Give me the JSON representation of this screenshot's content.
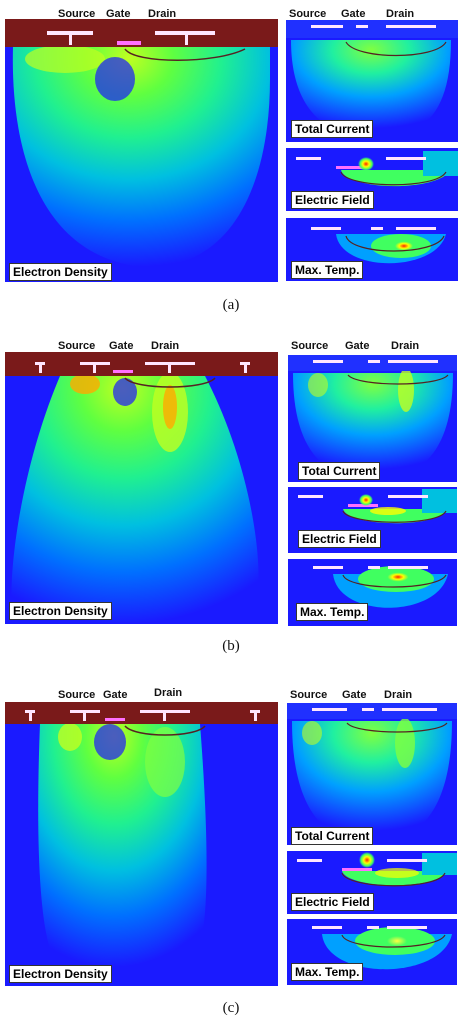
{
  "figure": {
    "header_labels": {
      "source": "Source",
      "gate": "Gate",
      "drain": "Drain"
    },
    "panel_labels": {
      "electron_density": "Electron Density",
      "total_current": "Total Current",
      "electric_field": "Electric Field",
      "max_temp": "Max. Temp."
    },
    "captions": {
      "a": "(a)",
      "b": "(b)",
      "c": "(c)"
    },
    "colors": {
      "background_blue": "#1a1aff",
      "substrate_top": "#7a1a1a",
      "metal_contact": "#ffe6ff",
      "gradient": [
        "#0040ff",
        "#00a0ff",
        "#00e0c0",
        "#40ff60",
        "#c0ff20",
        "#ffff00",
        "#ff4000"
      ]
    }
  }
}
